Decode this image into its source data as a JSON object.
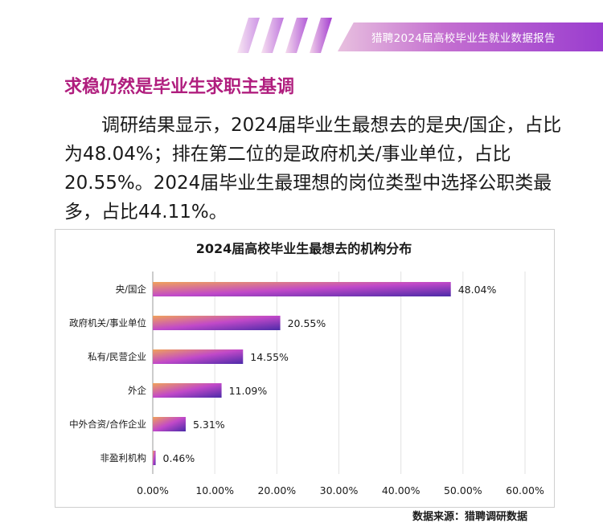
{
  "header": {
    "report_title": "猎聘2024届高校毕业生就业数据报告"
  },
  "section_title": "求稳仍然是毕业生求职主基调",
  "summary_text": "调研结果显示，2024届毕业生最想去的是央/国企，占比为48.04%；排在第二位的是政府机关/事业单位，占比20.55%。2024届毕业生最理想的岗位类型中选择公职类最多，占比44.11%。",
  "source": "数据来源：猎聘调研数据",
  "colors": {
    "title": "#b01e7e",
    "bar_start": "#f0a25a",
    "bar_mid": "#c149c9",
    "bar_end": "#4b2aa8"
  },
  "chart_data": {
    "type": "bar",
    "orientation": "horizontal",
    "title": "2024届高校毕业生最想去的机构分布",
    "categories": [
      "央/国企",
      "政府机关/事业单位",
      "私有/民营企业",
      "外企",
      "中外合资/合作企业",
      "非盈利机构"
    ],
    "values": [
      48.04,
      20.55,
      14.55,
      11.09,
      5.31,
      0.46
    ],
    "value_labels": [
      "48.04%",
      "20.55%",
      "14.55%",
      "11.09%",
      "5.31%",
      "0.46%"
    ],
    "xlim": [
      0,
      60
    ],
    "xticks": [
      0,
      10,
      20,
      30,
      40,
      50,
      60
    ],
    "xtick_labels": [
      "0.00%",
      "10.00%",
      "20.00%",
      "30.00%",
      "40.00%",
      "50.00%",
      "60.00%"
    ],
    "grid": true
  }
}
